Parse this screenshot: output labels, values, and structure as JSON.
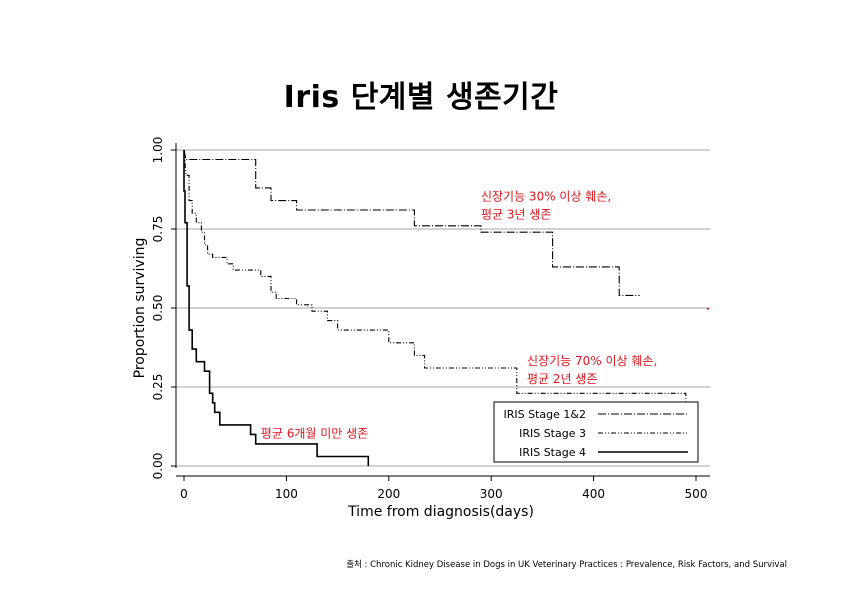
{
  "slide": {
    "title": "Iris 단계별 생존기간",
    "source_note": "출처 : Chronic Kidney Disease in Dogs in UK Veterinary Practices : Prevalence, Risk Factors, and Survival"
  },
  "colors": {
    "annotation": "#e0161e",
    "line": "#000000",
    "grid": "#888888"
  },
  "chart_data": {
    "type": "line",
    "subtype": "step (Kaplan-Meier survival)",
    "xlabel": "Time from diagnosis(days)",
    "ylabel": "Proportion surviving",
    "xlim": [
      -5,
      510
    ],
    "ylim": [
      0,
      1
    ],
    "xticks": [
      0,
      100,
      200,
      300,
      400,
      500
    ],
    "yticks": [
      0.0,
      0.25,
      0.5,
      0.75,
      1.0
    ],
    "ytick_labels": [
      "0.00",
      "0.25",
      "0.50",
      "0.75",
      "1.00"
    ],
    "grid": "horizontal at y ticks",
    "legend_position": "bottom-right",
    "annotations": [
      {
        "lines": [
          "신장기능 30% 이상 훼손,",
          "평균 3년 생존"
        ],
        "x": 290,
        "y": 0.84
      },
      {
        "lines": [
          "신장기능 70% 이상 훼손,",
          "평균 2년 생존"
        ],
        "x": 335,
        "y": 0.32
      },
      {
        "lines": [
          "평균 6개월 미만 생존"
        ],
        "x": 75,
        "y": 0.09
      }
    ],
    "series": [
      {
        "name": "IRIS Stage 1&2",
        "dash": "8,2,1,2",
        "points": [
          [
            0,
            1.0
          ],
          [
            2,
            0.97
          ],
          [
            70,
            0.97
          ],
          [
            70,
            0.88
          ],
          [
            85,
            0.88
          ],
          [
            85,
            0.84
          ],
          [
            110,
            0.84
          ],
          [
            110,
            0.81
          ],
          [
            225,
            0.81
          ],
          [
            225,
            0.76
          ],
          [
            290,
            0.76
          ],
          [
            290,
            0.74
          ],
          [
            360,
            0.74
          ],
          [
            360,
            0.63
          ],
          [
            425,
            0.63
          ],
          [
            425,
            0.54
          ],
          [
            445,
            0.54
          ]
        ]
      },
      {
        "name": "IRIS Stage 3",
        "dash": "5,2,1,2,1,2",
        "points": [
          [
            0,
            1.0
          ],
          [
            2,
            0.92
          ],
          [
            5,
            0.92
          ],
          [
            5,
            0.84
          ],
          [
            8,
            0.84
          ],
          [
            8,
            0.8
          ],
          [
            12,
            0.8
          ],
          [
            12,
            0.77
          ],
          [
            17,
            0.77
          ],
          [
            17,
            0.74
          ],
          [
            20,
            0.74
          ],
          [
            20,
            0.7
          ],
          [
            23,
            0.7
          ],
          [
            23,
            0.67
          ],
          [
            28,
            0.67
          ],
          [
            28,
            0.66
          ],
          [
            42,
            0.66
          ],
          [
            42,
            0.64
          ],
          [
            48,
            0.64
          ],
          [
            48,
            0.62
          ],
          [
            75,
            0.62
          ],
          [
            75,
            0.6
          ],
          [
            85,
            0.6
          ],
          [
            85,
            0.55
          ],
          [
            90,
            0.55
          ],
          [
            90,
            0.53
          ],
          [
            110,
            0.53
          ],
          [
            110,
            0.51
          ],
          [
            125,
            0.51
          ],
          [
            125,
            0.49
          ],
          [
            140,
            0.49
          ],
          [
            140,
            0.46
          ],
          [
            150,
            0.46
          ],
          [
            150,
            0.43
          ],
          [
            200,
            0.43
          ],
          [
            200,
            0.39
          ],
          [
            225,
            0.39
          ],
          [
            225,
            0.35
          ],
          [
            235,
            0.35
          ],
          [
            235,
            0.31
          ],
          [
            325,
            0.31
          ],
          [
            325,
            0.23
          ],
          [
            490,
            0.23
          ],
          [
            490,
            0.2
          ]
        ]
      },
      {
        "name": "IRIS Stage 4",
        "dash": "",
        "points": [
          [
            0,
            1.0
          ],
          [
            0,
            0.87
          ],
          [
            1,
            0.87
          ],
          [
            1,
            0.77
          ],
          [
            3,
            0.77
          ],
          [
            3,
            0.57
          ],
          [
            5,
            0.57
          ],
          [
            5,
            0.43
          ],
          [
            8,
            0.43
          ],
          [
            8,
            0.37
          ],
          [
            12,
            0.37
          ],
          [
            12,
            0.33
          ],
          [
            20,
            0.33
          ],
          [
            20,
            0.3
          ],
          [
            25,
            0.3
          ],
          [
            25,
            0.23
          ],
          [
            28,
            0.23
          ],
          [
            28,
            0.2
          ],
          [
            30,
            0.2
          ],
          [
            30,
            0.17
          ],
          [
            35,
            0.17
          ],
          [
            35,
            0.13
          ],
          [
            65,
            0.13
          ],
          [
            65,
            0.1
          ],
          [
            70,
            0.1
          ],
          [
            70,
            0.07
          ],
          [
            130,
            0.07
          ],
          [
            130,
            0.03
          ],
          [
            180,
            0.03
          ],
          [
            180,
            0.0
          ]
        ]
      }
    ]
  }
}
